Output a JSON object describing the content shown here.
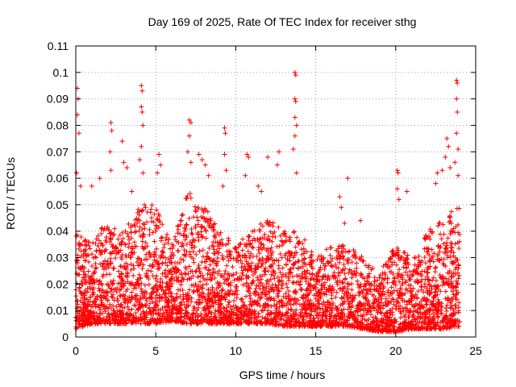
{
  "chart_data": {
    "type": "scatter",
    "title": "Day 169 of 2025, Rate Of TEC Index for receiver sthg",
    "xlabel": "GPS time / hours",
    "ylabel": "ROTI / TECUs",
    "xlim": [
      0,
      25
    ],
    "ylim": [
      0,
      0.11
    ],
    "x_ticks": [
      0,
      5,
      10,
      15,
      20,
      25
    ],
    "y_ticks": [
      0,
      0.01,
      0.02,
      0.03,
      0.04,
      0.05,
      0.06,
      0.07,
      0.08,
      0.09,
      0.1,
      0.11
    ],
    "grid": true,
    "marker": "+",
    "color": "#ff0000",
    "series": [
      {
        "name": "ROTI",
        "note": "dense cloud of samples across 0-24 h, mostly 0.005-0.03 TECU/s",
        "peaks": [
          {
            "x": 0.1,
            "y": 0.094
          },
          {
            "x": 0.15,
            "y": 0.09
          },
          {
            "x": 0.1,
            "y": 0.084
          },
          {
            "x": 0.2,
            "y": 0.077
          },
          {
            "x": 0.05,
            "y": 0.062
          },
          {
            "x": 0.3,
            "y": 0.057
          },
          {
            "x": 1.0,
            "y": 0.057
          },
          {
            "x": 1.5,
            "y": 0.06
          },
          {
            "x": 2.2,
            "y": 0.081
          },
          {
            "x": 2.25,
            "y": 0.078
          },
          {
            "x": 2.15,
            "y": 0.07
          },
          {
            "x": 2.2,
            "y": 0.063
          },
          {
            "x": 2.9,
            "y": 0.074
          },
          {
            "x": 3.0,
            "y": 0.066
          },
          {
            "x": 3.2,
            "y": 0.064
          },
          {
            "x": 3.5,
            "y": 0.055
          },
          {
            "x": 4.1,
            "y": 0.095
          },
          {
            "x": 4.15,
            "y": 0.093
          },
          {
            "x": 4.1,
            "y": 0.087
          },
          {
            "x": 4.15,
            "y": 0.085
          },
          {
            "x": 4.2,
            "y": 0.08
          },
          {
            "x": 4.1,
            "y": 0.072
          },
          {
            "x": 4.0,
            "y": 0.067
          },
          {
            "x": 4.2,
            "y": 0.062
          },
          {
            "x": 5.2,
            "y": 0.069
          },
          {
            "x": 5.3,
            "y": 0.065
          },
          {
            "x": 5.1,
            "y": 0.062
          },
          {
            "x": 7.0,
            "y": 0.07
          },
          {
            "x": 7.1,
            "y": 0.082
          },
          {
            "x": 7.2,
            "y": 0.081
          },
          {
            "x": 7.1,
            "y": 0.076
          },
          {
            "x": 7.2,
            "y": 0.066
          },
          {
            "x": 7.7,
            "y": 0.069
          },
          {
            "x": 7.9,
            "y": 0.067
          },
          {
            "x": 8.1,
            "y": 0.065
          },
          {
            "x": 8.3,
            "y": 0.061
          },
          {
            "x": 9.3,
            "y": 0.079
          },
          {
            "x": 9.35,
            "y": 0.077
          },
          {
            "x": 9.3,
            "y": 0.069
          },
          {
            "x": 9.4,
            "y": 0.063
          },
          {
            "x": 9.2,
            "y": 0.057
          },
          {
            "x": 10.7,
            "y": 0.069
          },
          {
            "x": 10.8,
            "y": 0.068
          },
          {
            "x": 10.6,
            "y": 0.061
          },
          {
            "x": 11.4,
            "y": 0.057
          },
          {
            "x": 11.6,
            "y": 0.055
          },
          {
            "x": 12.0,
            "y": 0.068
          },
          {
            "x": 12.7,
            "y": 0.07
          },
          {
            "x": 12.6,
            "y": 0.065
          },
          {
            "x": 13.7,
            "y": 0.1
          },
          {
            "x": 13.75,
            "y": 0.099
          },
          {
            "x": 13.7,
            "y": 0.09
          },
          {
            "x": 13.75,
            "y": 0.089
          },
          {
            "x": 13.7,
            "y": 0.083
          },
          {
            "x": 13.8,
            "y": 0.08
          },
          {
            "x": 13.7,
            "y": 0.076
          },
          {
            "x": 13.6,
            "y": 0.071
          },
          {
            "x": 13.8,
            "y": 0.062
          },
          {
            "x": 16.5,
            "y": 0.053
          },
          {
            "x": 16.6,
            "y": 0.049
          },
          {
            "x": 16.8,
            "y": 0.043
          },
          {
            "x": 17.0,
            "y": 0.06
          },
          {
            "x": 17.8,
            "y": 0.044
          },
          {
            "x": 20.1,
            "y": 0.063
          },
          {
            "x": 20.15,
            "y": 0.062
          },
          {
            "x": 20.1,
            "y": 0.056
          },
          {
            "x": 20.2,
            "y": 0.052
          },
          {
            "x": 20.7,
            "y": 0.055
          },
          {
            "x": 22.5,
            "y": 0.058
          },
          {
            "x": 22.9,
            "y": 0.063
          },
          {
            "x": 22.6,
            "y": 0.062
          },
          {
            "x": 23.2,
            "y": 0.075
          },
          {
            "x": 23.3,
            "y": 0.072
          },
          {
            "x": 23.1,
            "y": 0.068
          },
          {
            "x": 23.4,
            "y": 0.064
          },
          {
            "x": 23.8,
            "y": 0.097
          },
          {
            "x": 23.85,
            "y": 0.096
          },
          {
            "x": 23.8,
            "y": 0.09
          },
          {
            "x": 23.85,
            "y": 0.085
          },
          {
            "x": 23.8,
            "y": 0.077
          },
          {
            "x": 23.9,
            "y": 0.071
          },
          {
            "x": 23.7,
            "y": 0.066
          },
          {
            "x": 23.9,
            "y": 0.061
          }
        ],
        "envelope": {
          "hours": [
            0,
            1,
            2,
            3,
            4,
            5,
            6,
            7,
            8,
            9,
            10,
            11,
            12,
            13,
            14,
            15,
            16,
            17,
            18,
            19,
            20,
            21,
            22,
            23,
            24
          ],
          "typical_max": [
            0.04,
            0.035,
            0.045,
            0.04,
            0.05,
            0.05,
            0.035,
            0.055,
            0.05,
            0.04,
            0.035,
            0.04,
            0.045,
            0.04,
            0.04,
            0.03,
            0.035,
            0.035,
            0.03,
            0.025,
            0.035,
            0.03,
            0.04,
            0.045,
            0.05
          ],
          "typical_min": [
            0.003,
            0.005,
            0.005,
            0.005,
            0.005,
            0.005,
            0.006,
            0.005,
            0.005,
            0.005,
            0.005,
            0.005,
            0.005,
            0.004,
            0.004,
            0.004,
            0.004,
            0.004,
            0.003,
            0.002,
            0.002,
            0.003,
            0.003,
            0.003,
            0.004
          ]
        }
      }
    ]
  }
}
